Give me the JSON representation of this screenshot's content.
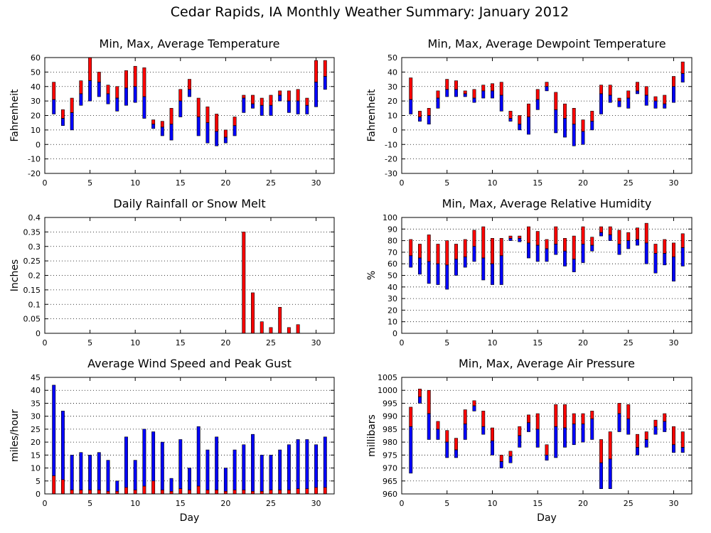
{
  "title": "Cedar Rapids, IA Monthly Weather Summary: January 2012",
  "colors": {
    "upper": "#ff0000",
    "lower": "#0000ff"
  },
  "chart_data": [
    {
      "type": "bar",
      "title": "Min, Max, Average Temperature",
      "ylabel": "Fahrenheit",
      "xlabel": "",
      "xlim": [
        0,
        32
      ],
      "ylim": [
        -20,
        60
      ],
      "yticks": [
        -20,
        -10,
        0,
        10,
        20,
        30,
        40,
        50,
        60
      ],
      "xticks": [
        0,
        5,
        10,
        15,
        20,
        25,
        30
      ],
      "x": [
        1,
        2,
        3,
        4,
        5,
        6,
        7,
        8,
        9,
        10,
        11,
        12,
        13,
        14,
        15,
        16,
        17,
        18,
        19,
        20,
        21,
        22,
        23,
        24,
        25,
        26,
        27,
        28,
        29,
        30,
        31
      ],
      "series": [
        {
          "name": "Min",
          "values": [
            21,
            13,
            10,
            27,
            30,
            33,
            28,
            23,
            27,
            29,
            18,
            11,
            6,
            3,
            19,
            33,
            6,
            1,
            -1,
            1,
            6,
            22,
            25,
            20,
            20,
            30,
            22,
            21,
            21,
            26,
            38
          ]
        },
        {
          "name": "Average",
          "values": [
            31,
            18,
            22,
            35,
            44,
            43,
            35,
            32,
            39,
            40,
            33,
            14,
            12,
            14,
            30,
            38,
            19,
            15,
            9,
            5,
            13,
            32,
            28,
            27,
            27,
            34,
            30,
            30,
            27,
            43,
            47
          ]
        },
        {
          "name": "Max",
          "values": [
            43,
            24,
            32,
            44,
            60,
            50,
            41,
            40,
            51,
            54,
            53,
            17,
            16,
            25,
            38,
            45,
            32,
            26,
            21,
            10,
            19,
            34,
            34,
            32,
            34,
            37,
            37,
            38,
            32,
            58,
            58
          ]
        }
      ]
    },
    {
      "type": "bar",
      "title": "Min, Max, Average Dewpoint Temperature",
      "ylabel": "Fahrenheit",
      "xlabel": "",
      "xlim": [
        0,
        32
      ],
      "ylim": [
        -30,
        50
      ],
      "yticks": [
        -30,
        -20,
        -10,
        0,
        10,
        20,
        30,
        40,
        50
      ],
      "xticks": [
        0,
        5,
        10,
        15,
        20,
        25,
        30
      ],
      "x": [
        1,
        2,
        3,
        4,
        5,
        6,
        7,
        8,
        9,
        10,
        11,
        12,
        13,
        14,
        15,
        16,
        17,
        18,
        19,
        20,
        21,
        22,
        23,
        24,
        25,
        26,
        27,
        28,
        29,
        30,
        31
      ],
      "series": [
        {
          "name": "Min",
          "values": [
            11,
            6,
            4,
            15,
            23,
            23,
            23,
            19,
            22,
            22,
            13,
            6,
            0,
            -3,
            14,
            27,
            -2,
            -5,
            -11,
            -10,
            0,
            11,
            19,
            16,
            15,
            25,
            17,
            15,
            15,
            19,
            33
          ]
        },
        {
          "name": "Average",
          "values": [
            21,
            9,
            10,
            22,
            28,
            28,
            25,
            22,
            27,
            27,
            24,
            8,
            4,
            9,
            21,
            30,
            14,
            8,
            4,
            -1,
            6,
            25,
            24,
            20,
            22,
            27,
            24,
            20,
            18,
            30,
            39
          ]
        },
        {
          "name": "Max",
          "values": [
            36,
            13,
            15,
            27,
            35,
            34,
            27,
            28,
            31,
            32,
            33,
            13,
            10,
            18,
            28,
            33,
            26,
            18,
            15,
            7,
            13,
            31,
            31,
            22,
            27,
            33,
            30,
            23,
            24,
            37,
            47
          ]
        }
      ]
    },
    {
      "type": "bar",
      "title": "Daily Rainfall or Snow Melt",
      "ylabel": "Inches",
      "xlabel": "",
      "xlim": [
        0,
        32
      ],
      "ylim": [
        0,
        0.4
      ],
      "yticks": [
        "0",
        "0.05",
        "0.1",
        "0.15",
        "0.2",
        "0.25",
        "0.3",
        "0.35",
        "0.4"
      ],
      "xticks": [
        0,
        5,
        10,
        15,
        20,
        25,
        30
      ],
      "x": [
        1,
        2,
        3,
        4,
        5,
        6,
        7,
        8,
        9,
        10,
        11,
        12,
        13,
        14,
        15,
        16,
        17,
        18,
        19,
        20,
        21,
        22,
        23,
        24,
        25,
        26,
        27,
        28,
        29,
        30,
        31
      ],
      "series": [
        {
          "name": "Precipitation",
          "values": [
            0,
            0,
            0,
            0,
            0,
            0,
            0,
            0,
            0,
            0,
            0,
            0,
            0,
            0,
            0,
            0,
            0,
            0,
            0,
            0,
            0,
            0.35,
            0.14,
            0.04,
            0.02,
            0.09,
            0.02,
            0.03,
            0,
            0,
            0
          ]
        }
      ]
    },
    {
      "type": "bar",
      "title": "Min, Max, Average Relative Humidity",
      "ylabel": "%",
      "xlabel": "",
      "xlim": [
        0,
        32
      ],
      "ylim": [
        0,
        100
      ],
      "yticks": [
        0,
        10,
        20,
        30,
        40,
        50,
        60,
        70,
        80,
        90,
        100
      ],
      "xticks": [
        0,
        5,
        10,
        15,
        20,
        25,
        30
      ],
      "x": [
        1,
        2,
        3,
        4,
        5,
        6,
        7,
        8,
        9,
        10,
        11,
        12,
        13,
        14,
        15,
        16,
        17,
        18,
        19,
        20,
        21,
        22,
        23,
        24,
        25,
        26,
        27,
        28,
        29,
        30,
        31
      ],
      "series": [
        {
          "name": "Min",
          "values": [
            57,
            51,
            43,
            42,
            38,
            50,
            57,
            62,
            46,
            42,
            42,
            80,
            79,
            65,
            62,
            62,
            68,
            58,
            53,
            61,
            71,
            84,
            80,
            68,
            73,
            76,
            60,
            52,
            59,
            45,
            58
          ]
        },
        {
          "name": "Average",
          "values": [
            67,
            65,
            62,
            60,
            59,
            64,
            66,
            75,
            65,
            60,
            67,
            82,
            82,
            78,
            76,
            73,
            77,
            71,
            64,
            77,
            76,
            87,
            85,
            77,
            80,
            81,
            78,
            69,
            69,
            66,
            74
          ]
        },
        {
          "name": "Max",
          "values": [
            81,
            77,
            85,
            77,
            80,
            77,
            81,
            89,
            92,
            82,
            82,
            84,
            84,
            92,
            88,
            81,
            92,
            82,
            84,
            92,
            83,
            92,
            92,
            89,
            87,
            91,
            95,
            77,
            81,
            78,
            86
          ]
        }
      ]
    },
    {
      "type": "bar",
      "title": "Average Wind Speed and Peak Gust",
      "ylabel": "miles/hour",
      "xlabel": "Day",
      "xlim": [
        0,
        32
      ],
      "ylim": [
        0,
        45
      ],
      "yticks": [
        0,
        5,
        10,
        15,
        20,
        25,
        30,
        35,
        40,
        45
      ],
      "xticks": [
        0,
        5,
        10,
        15,
        20,
        25,
        30
      ],
      "x": [
        1,
        2,
        3,
        4,
        5,
        6,
        7,
        8,
        9,
        10,
        11,
        12,
        13,
        14,
        15,
        16,
        17,
        18,
        19,
        20,
        21,
        22,
        23,
        24,
        25,
        26,
        27,
        28,
        29,
        30,
        31
      ],
      "series": [
        {
          "name": "Average Wind Speed",
          "values": [
            7,
            5.5,
            1.5,
            1.5,
            1.5,
            1.5,
            1,
            1,
            2.5,
            1.5,
            3,
            5,
            1.5,
            1,
            2,
            1.5,
            3,
            1.5,
            1.5,
            1,
            1.5,
            1.5,
            1,
            1,
            1.5,
            1.5,
            1.5,
            2,
            2,
            2.5,
            2.5
          ]
        },
        {
          "name": "Peak Gust",
          "values": [
            42,
            32,
            15,
            16,
            15,
            16,
            13,
            5,
            22,
            13,
            25,
            24,
            20,
            6,
            21,
            10,
            26,
            17,
            22,
            10,
            17,
            19,
            23,
            15,
            15,
            17,
            19,
            21,
            21,
            19,
            22
          ]
        }
      ]
    },
    {
      "type": "bar",
      "title": "Min, Max, Average Air Pressure",
      "ylabel": "millibars",
      "xlabel": "Day",
      "xlim": [
        0,
        32
      ],
      "ylim": [
        960,
        1005
      ],
      "yticks": [
        960,
        965,
        970,
        975,
        980,
        985,
        990,
        995,
        1000,
        1005
      ],
      "xticks": [
        0,
        5,
        10,
        15,
        20,
        25,
        30
      ],
      "x": [
        1,
        2,
        3,
        4,
        5,
        6,
        7,
        8,
        9,
        10,
        11,
        12,
        13,
        14,
        15,
        16,
        17,
        18,
        19,
        20,
        21,
        22,
        23,
        24,
        25,
        26,
        27,
        28,
        29,
        30,
        31
      ],
      "series": [
        {
          "name": "Min",
          "values": [
            968,
            995,
            981,
            981,
            974,
            974,
            981,
            992,
            983,
            975,
            970,
            972,
            978,
            984,
            978,
            973,
            974,
            978,
            979,
            980,
            981,
            962,
            962,
            984,
            983,
            975,
            978,
            983,
            984,
            976,
            976
          ]
        },
        {
          "name": "Average",
          "values": [
            986,
            997.5,
            991,
            985,
            980,
            977,
            987,
            994,
            986,
            980.5,
            972.5,
            974.5,
            982.5,
            987.5,
            985,
            975,
            986,
            985.5,
            987,
            987,
            989,
            972,
            973.5,
            991,
            989,
            978,
            981,
            986,
            988,
            979,
            978
          ]
        },
        {
          "name": "Max",
          "values": [
            993.5,
            1000.5,
            1000,
            988,
            984.5,
            981.5,
            992.5,
            996,
            992,
            985.5,
            975,
            976.5,
            986,
            990.5,
            991,
            979,
            994.5,
            994.5,
            991,
            991,
            992,
            981,
            984,
            995,
            994.5,
            983,
            984,
            988.5,
            991,
            986,
            984
          ]
        }
      ]
    }
  ]
}
